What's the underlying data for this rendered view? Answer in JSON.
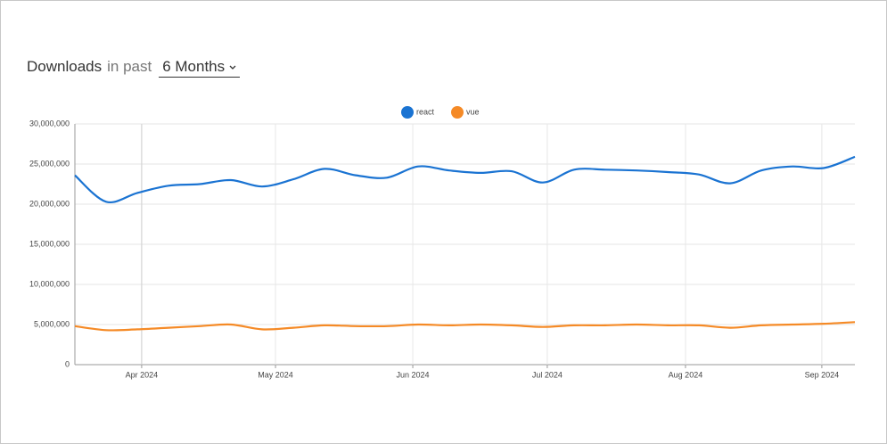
{
  "header": {
    "title": "Downloads",
    "connector": "in past",
    "period": "6 Months"
  },
  "chart_data": {
    "type": "line",
    "x": [
      0,
      1,
      2,
      3,
      4,
      5,
      6,
      7,
      8,
      9,
      10,
      11,
      12,
      13,
      14,
      15,
      16,
      17,
      18,
      19,
      20,
      21,
      22,
      23,
      24,
      25
    ],
    "xlim": [
      0,
      25
    ],
    "xticks": [
      {
        "value": 2.14,
        "label": "Apr 2024"
      },
      {
        "value": 6.43,
        "label": "May 2024"
      },
      {
        "value": 10.83,
        "label": "Jun 2024"
      },
      {
        "value": 15.14,
        "label": "Jul 2024"
      },
      {
        "value": 19.57,
        "label": "Aug 2024"
      },
      {
        "value": 23.94,
        "label": "Sep 2024"
      }
    ],
    "ylim": [
      0,
      30000000
    ],
    "yticks": [
      0,
      {
        "value": 5000000,
        "label": "5,000,000"
      },
      {
        "value": 10000000,
        "label": "10,000,000"
      },
      {
        "value": 15000000,
        "label": "15,000,000"
      },
      {
        "value": 20000000,
        "label": "20,000,000"
      },
      {
        "value": 25000000,
        "label": "25,000,000"
      },
      {
        "value": 30000000,
        "label": "30,000,000"
      }
    ],
    "grid": true,
    "legend": "top",
    "series": [
      {
        "name": "react",
        "color": "#1a73d2",
        "values": [
          23600000,
          20300000,
          21400000,
          22300000,
          22500000,
          23000000,
          22200000,
          23100000,
          24400000,
          23600000,
          23300000,
          24700000,
          24200000,
          23900000,
          24100000,
          22700000,
          24300000,
          24300000,
          24200000,
          24000000,
          23700000,
          22600000,
          24200000,
          24700000,
          24500000,
          25900000
        ]
      },
      {
        "name": "vue",
        "color": "#f58a26",
        "values": [
          4800000,
          4300000,
          4400000,
          4600000,
          4800000,
          5000000,
          4400000,
          4600000,
          4900000,
          4800000,
          4800000,
          5000000,
          4900000,
          5000000,
          4900000,
          4700000,
          4900000,
          4900000,
          5000000,
          4900000,
          4900000,
          4600000,
          4900000,
          5000000,
          5100000,
          5300000
        ]
      }
    ]
  }
}
